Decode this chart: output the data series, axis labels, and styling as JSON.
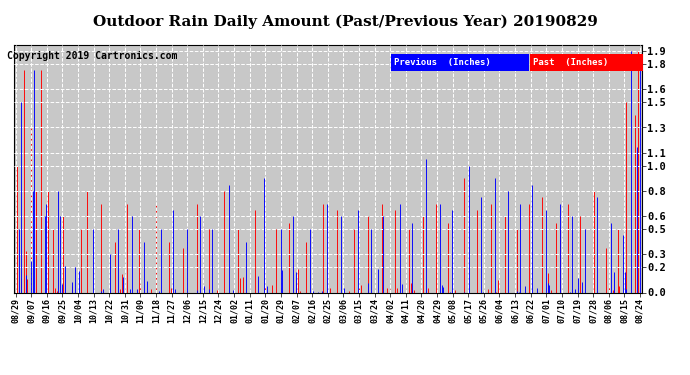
{
  "title": "Outdoor Rain Daily Amount (Past/Previous Year) 20190829",
  "copyright": "Copyright 2019 Cartronics.com",
  "legend_previous": "Previous  (Inches)",
  "legend_past": "Past  (Inches)",
  "legend_previous_color": "#0000FF",
  "legend_past_color": "#FF0000",
  "legend_previous_bg": "#0000FF",
  "legend_past_bg": "#FF0000",
  "ylabel_values": [
    0.0,
    0.2,
    0.3,
    0.5,
    0.6,
    0.8,
    1.0,
    1.1,
    1.3,
    1.5,
    1.6,
    1.8,
    1.9
  ],
  "ylim": [
    0.0,
    1.95
  ],
  "background_color": "#ffffff",
  "plot_bg_color": "#c8c8c8",
  "grid_color": "#ffffff",
  "title_fontsize": 11,
  "copyright_fontsize": 7,
  "tick_labels": [
    "08/29",
    "09/07",
    "09/16",
    "09/25",
    "10/04",
    "10/13",
    "10/22",
    "10/31",
    "11/09",
    "11/18",
    "11/27",
    "12/06",
    "12/15",
    "12/24",
    "01/02",
    "01/11",
    "01/20",
    "01/29",
    "02/07",
    "02/16",
    "02/25",
    "03/06",
    "03/15",
    "03/24",
    "04/02",
    "04/11",
    "04/20",
    "04/29",
    "05/08",
    "05/17",
    "05/26",
    "06/04",
    "06/13",
    "06/22",
    "07/01",
    "07/10",
    "07/19",
    "07/28",
    "08/06",
    "08/15",
    "08/24"
  ]
}
